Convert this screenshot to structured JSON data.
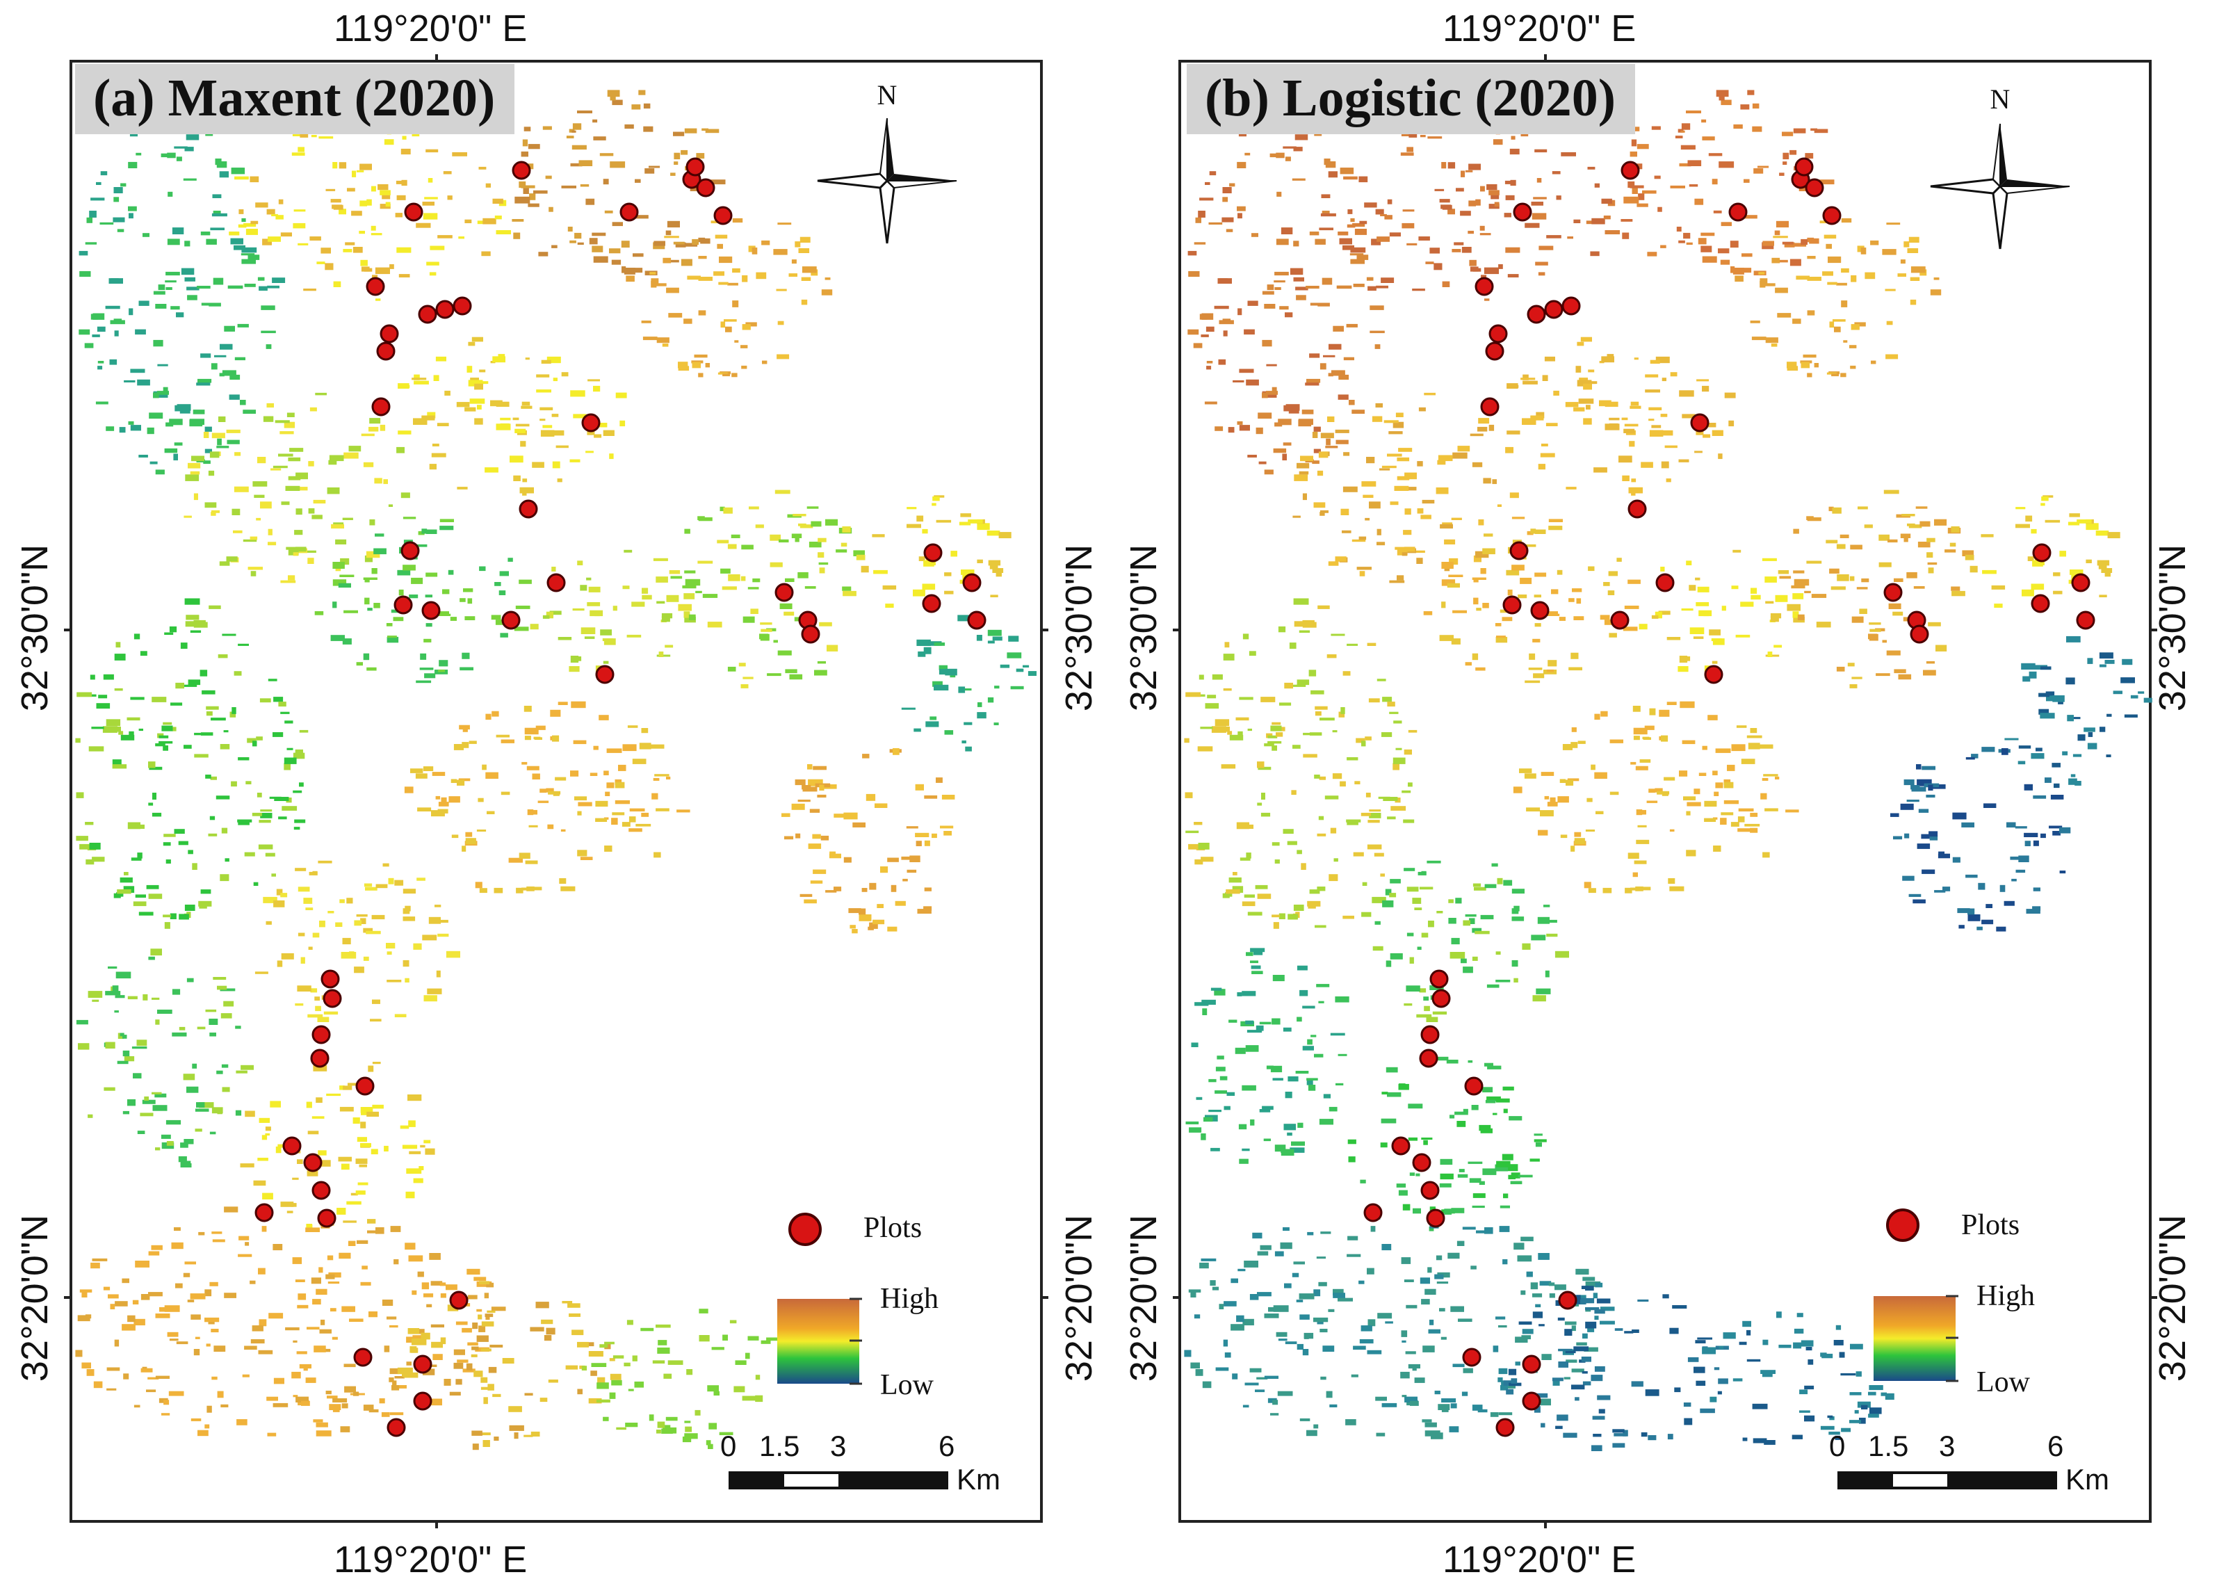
{
  "figure": {
    "colors": {
      "high": "#c8693a",
      "mid_high": "#e8b93a",
      "mid": "#f4ec2a",
      "mid_low": "#2ec43c",
      "low": "#1a4a8a",
      "plot_fill": "#d81414",
      "plot_stroke": "#4a0000",
      "title_bg": "#d3d3d3"
    },
    "panels": [
      {
        "title": "(a)  Maxent (2020)",
        "coord_top": "119°20'0\"  E",
        "coord_bottom": "119°20'0\"  E",
        "coord_lat_upper": "32°30'0\"N",
        "coord_lat_lower": "32°20'0\"N",
        "north_label": "N",
        "legend": {
          "plots_label": "Plots",
          "high_label": "High",
          "low_label": "Low"
        },
        "scale": {
          "ticks": [
            "0",
            "1.5",
            "3",
            "6"
          ],
          "unit": "Km"
        }
      },
      {
        "title": "(b) Logistic (2020)",
        "coord_top": "119°20'0\"  E",
        "coord_bottom": "119°20'0\"  E",
        "coord_lat_upper": "32°30'0\"N",
        "coord_lat_lower": "32°20'0\"N",
        "north_label": "N",
        "legend": {
          "plots_label": "Plots",
          "high_label": "High",
          "low_label": "Low"
        },
        "scale": {
          "ticks": [
            "0",
            "1.5",
            "3",
            "6"
          ],
          "unit": "Km"
        }
      }
    ]
  }
}
